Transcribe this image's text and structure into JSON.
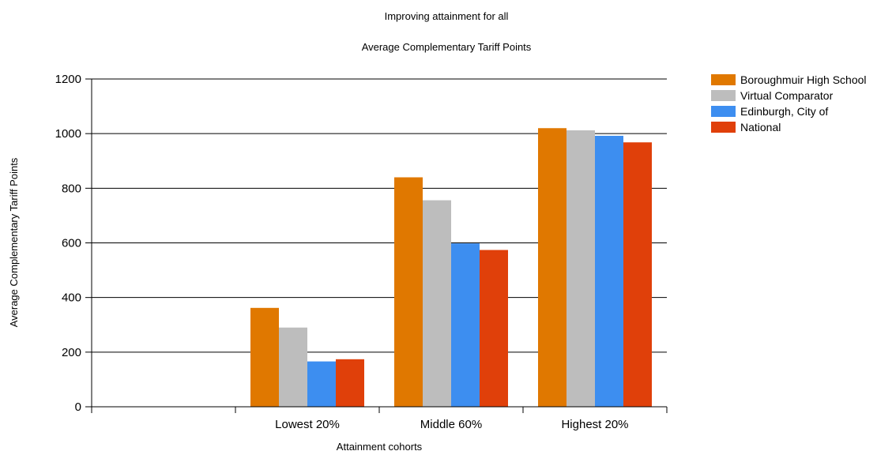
{
  "chart_data": {
    "type": "bar",
    "title": "Improving attainment for all",
    "subtitle": "Average Complementary Tariff Points",
    "xlabel": "Attainment cohorts",
    "ylabel": "Average Complementary Tariff Points",
    "ylim": [
      0,
      1200
    ],
    "yticks": [
      0,
      200,
      400,
      600,
      800,
      1000,
      1200
    ],
    "grid": true,
    "legend_position": "top-right",
    "categories": [
      "Lowest 20%",
      "Middle 60%",
      "Highest 20%"
    ],
    "series": [
      {
        "name": "Boroughmuir High School",
        "color": "#E07800",
        "values": [
          362,
          840,
          1020
        ]
      },
      {
        "name": "Virtual Comparator",
        "color": "#BDBDBD",
        "values": [
          290,
          756,
          1012
        ]
      },
      {
        "name": "Edinburgh, City of",
        "color": "#3D8EF0",
        "values": [
          166,
          598,
          992
        ]
      },
      {
        "name": "National",
        "color": "#E0400A",
        "values": [
          174,
          574,
          968
        ]
      }
    ]
  }
}
